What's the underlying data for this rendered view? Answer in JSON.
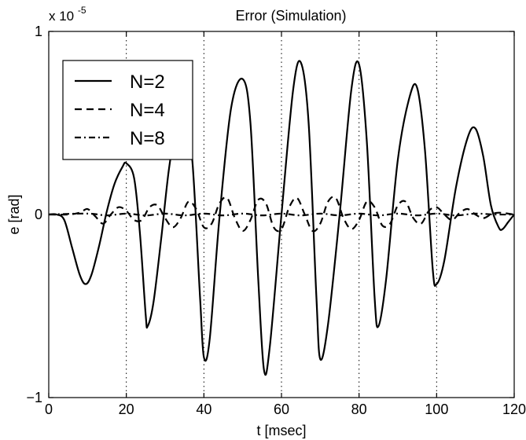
{
  "chart_data": {
    "type": "line",
    "title": "Error (Simulation)",
    "xlabel": "t [msec]",
    "ylabel": "e [rad]",
    "scale_note": "x 10",
    "scale_exponent": "-5",
    "xlim": [
      0,
      120
    ],
    "ylim": [
      -1,
      1
    ],
    "xticks": [
      "0",
      "20",
      "40",
      "60",
      "80",
      "100",
      "120"
    ],
    "yticks": [
      "−1",
      "0",
      "1"
    ],
    "grid": "vertical dotted lines at x ticks",
    "legend_position": "top-left",
    "series": [
      {
        "name": "N=2",
        "style": "solid",
        "points": [
          [
            0,
            0
          ],
          [
            2,
            0
          ],
          [
            4,
            -0.03
          ],
          [
            6,
            -0.18
          ],
          [
            8,
            -0.33
          ],
          [
            9.5,
            -0.38
          ],
          [
            11,
            -0.33
          ],
          [
            13,
            -0.17
          ],
          [
            15,
            0.02
          ],
          [
            17,
            0.17
          ],
          [
            19,
            0.26
          ],
          [
            20,
            0.28
          ],
          [
            22,
            0.2
          ],
          [
            23.5,
            -0.1
          ],
          [
            25,
            -0.55
          ],
          [
            25.5,
            -0.61
          ],
          [
            27,
            -0.48
          ],
          [
            29,
            -0.13
          ],
          [
            31,
            0.25
          ],
          [
            33,
            0.49
          ],
          [
            34.5,
            0.55
          ],
          [
            35,
            0.55
          ],
          [
            37,
            0.3
          ],
          [
            39,
            -0.45
          ],
          [
            40,
            -0.78
          ],
          [
            41.5,
            -0.68
          ],
          [
            44,
            -0.02
          ],
          [
            47,
            0.58
          ],
          [
            50,
            0.74
          ],
          [
            52,
            0.5
          ],
          [
            54,
            -0.35
          ],
          [
            55.5,
            -0.85
          ],
          [
            57,
            -0.72
          ],
          [
            60,
            0.0
          ],
          [
            63,
            0.68
          ],
          [
            65,
            0.83
          ],
          [
            67,
            0.5
          ],
          [
            69,
            -0.45
          ],
          [
            70,
            -0.79
          ],
          [
            72,
            -0.6
          ],
          [
            75,
            0.0
          ],
          [
            78,
            0.68
          ],
          [
            80,
            0.82
          ],
          [
            82,
            0.4
          ],
          [
            84,
            -0.45
          ],
          [
            85,
            -0.61
          ],
          [
            87,
            -0.35
          ],
          [
            90,
            0.3
          ],
          [
            93,
            0.64
          ],
          [
            95,
            0.69
          ],
          [
            97,
            0.35
          ],
          [
            99,
            -0.3
          ],
          [
            100,
            -0.38
          ],
          [
            102,
            -0.25
          ],
          [
            105,
            0.15
          ],
          [
            108,
            0.42
          ],
          [
            110,
            0.47
          ],
          [
            112,
            0.32
          ],
          [
            114,
            0.05
          ],
          [
            116,
            -0.07
          ],
          [
            117,
            -0.08
          ],
          [
            118.5,
            -0.04
          ],
          [
            120,
            0.0
          ]
        ]
      },
      {
        "name": "N=4",
        "style": "dashed",
        "points": [
          [
            0,
            0
          ],
          [
            5,
            0
          ],
          [
            8,
            0.01
          ],
          [
            10,
            0.03
          ],
          [
            12,
            -0.01
          ],
          [
            14,
            -0.05
          ],
          [
            16,
            0.0
          ],
          [
            18,
            0.04
          ],
          [
            20,
            0.02
          ],
          [
            22,
            -0.03
          ],
          [
            24,
            -0.03
          ],
          [
            26,
            0.04
          ],
          [
            28,
            0.05
          ],
          [
            30,
            -0.02
          ],
          [
            32,
            -0.07
          ],
          [
            34,
            -0.02
          ],
          [
            36,
            0.07
          ],
          [
            38,
            0.03
          ],
          [
            40,
            -0.07
          ],
          [
            42,
            -0.05
          ],
          [
            44,
            0.06
          ],
          [
            46,
            0.09
          ],
          [
            48,
            -0.02
          ],
          [
            50,
            -0.09
          ],
          [
            52,
            -0.03
          ],
          [
            54,
            0.08
          ],
          [
            56,
            0.06
          ],
          [
            58,
            -0.07
          ],
          [
            60,
            -0.08
          ],
          [
            62,
            0.04
          ],
          [
            64,
            0.09
          ],
          [
            66,
            0.0
          ],
          [
            68,
            -0.09
          ],
          [
            70,
            -0.05
          ],
          [
            72,
            0.07
          ],
          [
            74,
            0.09
          ],
          [
            76,
            -0.02
          ],
          [
            78,
            -0.08
          ],
          [
            80,
            -0.03
          ],
          [
            82,
            0.07
          ],
          [
            84,
            0.04
          ],
          [
            86,
            -0.06
          ],
          [
            88,
            -0.05
          ],
          [
            90,
            0.05
          ],
          [
            92,
            0.07
          ],
          [
            94,
            -0.02
          ],
          [
            96,
            -0.05
          ],
          [
            98,
            0.02
          ],
          [
            100,
            0.04
          ],
          [
            102,
            0.0
          ],
          [
            104,
            -0.03
          ],
          [
            106,
            0.01
          ],
          [
            108,
            0.03
          ],
          [
            110,
            0.0
          ],
          [
            112,
            -0.02
          ],
          [
            114,
            0.0
          ],
          [
            116,
            0.01
          ],
          [
            120,
            0.0
          ]
        ]
      },
      {
        "name": "N=8",
        "style": "dash-dot",
        "points": [
          [
            0,
            0
          ],
          [
            10,
            0.005
          ],
          [
            15,
            -0.005
          ],
          [
            20,
            0.005
          ],
          [
            25,
            -0.005
          ],
          [
            30,
            0.005
          ],
          [
            35,
            -0.005
          ],
          [
            40,
            0.005
          ],
          [
            45,
            -0.005
          ],
          [
            50,
            0.005
          ],
          [
            55,
            -0.005
          ],
          [
            60,
            0.005
          ],
          [
            65,
            -0.005
          ],
          [
            70,
            0.005
          ],
          [
            75,
            -0.005
          ],
          [
            80,
            0.005
          ],
          [
            85,
            -0.005
          ],
          [
            90,
            0.005
          ],
          [
            95,
            -0.005
          ],
          [
            100,
            0.005
          ],
          [
            105,
            -0.005
          ],
          [
            110,
            0.005
          ],
          [
            115,
            0.0
          ],
          [
            120,
            0.0
          ]
        ]
      }
    ]
  }
}
